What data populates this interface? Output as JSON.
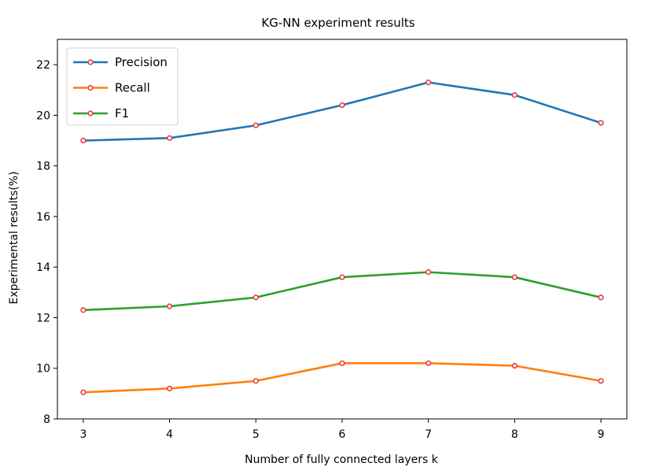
{
  "chart_data": {
    "type": "line",
    "title": "KG-NN experiment results",
    "xlabel": "Number of fully connected layers k",
    "ylabel": "Experimental results(%)",
    "x": [
      3,
      4,
      5,
      6,
      7,
      8,
      9
    ],
    "xticks": [
      "3",
      "4",
      "5",
      "6",
      "7",
      "8",
      "9"
    ],
    "xlim": [
      2.7,
      9.3
    ],
    "ylim": [
      8,
      23
    ],
    "yticks": [
      "8",
      "10",
      "12",
      "14",
      "16",
      "18",
      "20",
      "22"
    ],
    "grid": false,
    "legend_position": "top-left",
    "marker_color": "#e8383d",
    "series": [
      {
        "name": "Precision",
        "color": "#1f77b4",
        "values": [
          19.0,
          19.1,
          19.6,
          20.4,
          21.3,
          20.8,
          19.7
        ]
      },
      {
        "name": "Recall",
        "color": "#ff7f0e",
        "values": [
          9.05,
          9.2,
          9.5,
          10.2,
          10.2,
          10.1,
          9.5
        ]
      },
      {
        "name": "F1",
        "color": "#2ca02c",
        "values": [
          12.3,
          12.45,
          12.8,
          13.6,
          13.8,
          13.6,
          12.8
        ]
      }
    ]
  }
}
